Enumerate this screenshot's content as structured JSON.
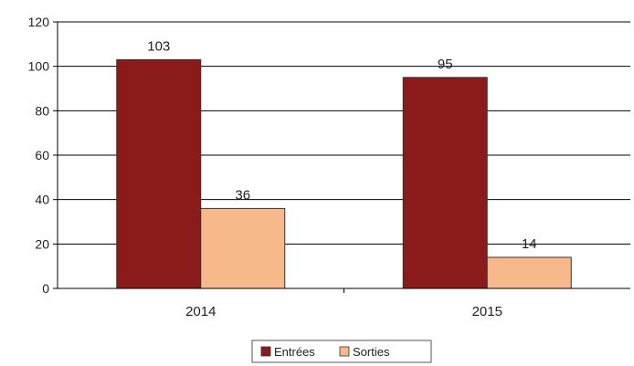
{
  "chart_data": {
    "type": "bar",
    "categories": [
      "2014",
      "2015"
    ],
    "series": [
      {
        "name": "Entrées",
        "values": [
          103,
          95
        ],
        "color": "#8b1a1a"
      },
      {
        "name": "Sorties",
        "values": [
          36,
          14
        ],
        "color": "#f7b98a"
      }
    ],
    "ylim": [
      0,
      120
    ],
    "yticks": [
      0,
      20,
      40,
      60,
      80,
      100,
      120
    ],
    "grid": true,
    "legend_position": "bottom-center",
    "data_labels": true
  }
}
